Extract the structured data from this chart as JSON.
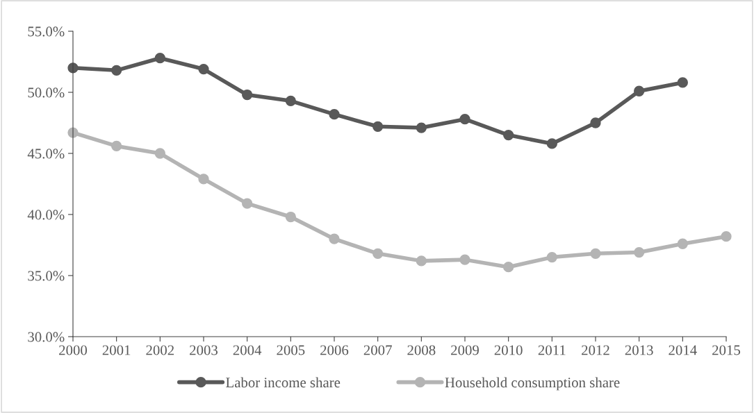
{
  "chart_data": {
    "type": "line",
    "categories": [
      "2000",
      "2001",
      "2002",
      "2003",
      "2004",
      "2005",
      "2006",
      "2007",
      "2008",
      "2009",
      "2010",
      "2011",
      "2012",
      "2013",
      "2014",
      "2015"
    ],
    "series": [
      {
        "name": "Labor income share",
        "color": "#595959",
        "values": [
          52.0,
          51.8,
          52.8,
          51.9,
          49.8,
          49.3,
          48.2,
          47.2,
          47.1,
          47.8,
          46.5,
          45.8,
          47.5,
          50.1,
          50.8,
          null
        ]
      },
      {
        "name": "Household consumption share",
        "color": "#b4b4b4",
        "values": [
          46.7,
          45.6,
          45.0,
          42.9,
          40.9,
          39.8,
          38.0,
          36.8,
          36.2,
          36.3,
          35.7,
          36.5,
          36.8,
          36.9,
          37.6,
          38.2
        ]
      }
    ],
    "ylim": [
      30,
      55
    ],
    "yticks": [
      {
        "value": 30,
        "label": "30.0%"
      },
      {
        "value": 35,
        "label": "35.0%"
      },
      {
        "value": 40,
        "label": "40.0%"
      },
      {
        "value": 45,
        "label": "45.0%"
      },
      {
        "value": 50,
        "label": "50.0%"
      },
      {
        "value": 55,
        "label": "55.0%"
      }
    ],
    "marker": "circle",
    "line_style": "solid",
    "grid": false,
    "legend": "bottom"
  }
}
